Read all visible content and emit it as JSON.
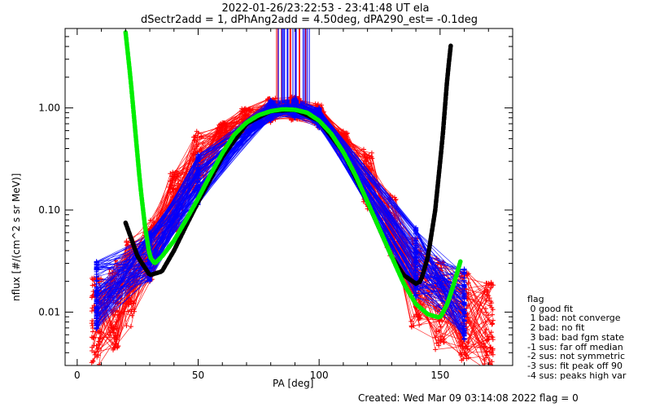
{
  "chart_data": {
    "type": "line",
    "title": "2022-01-26/23:22:53 - 23:41:48 UT ela",
    "subtitle": "dSectr2add = 1, dPhAng2add = 4.50deg, dPA290_est=  -0.1deg",
    "xlabel": "PA [deg]",
    "ylabel": "nflux [#/(cm^2 s sr MeV)]",
    "x_ticks": [
      "0",
      "50",
      "100",
      "150"
    ],
    "y_ticks": [
      "0.01",
      "0.10",
      "1.00"
    ],
    "xlim": [
      -5,
      180
    ],
    "ylim": [
      0.003,
      6.0
    ],
    "y_scale": "log",
    "grid": false,
    "pa_bins": [
      8,
      30,
      50,
      80,
      90,
      100,
      140,
      160
    ],
    "series": [
      {
        "color": "#ff0000",
        "x": [
          8,
          15,
          22,
          30,
          40,
          50,
          60,
          70,
          80,
          90,
          100,
          110,
          120,
          130,
          140,
          150,
          160,
          170
        ],
        "y": [
          0.008,
          0.012,
          0.02,
          0.04,
          0.12,
          0.3,
          0.55,
          0.75,
          0.95,
          1.0,
          0.85,
          0.45,
          0.2,
          0.07,
          0.02,
          0.012,
          0.009,
          0.007
        ]
      },
      {
        "color": "#0000ff",
        "x": [
          8,
          30,
          50,
          70,
          80,
          90,
          100,
          120,
          140,
          160
        ],
        "y": [
          0.015,
          0.035,
          0.2,
          0.7,
          0.95,
          1.0,
          0.8,
          0.25,
          0.03,
          0.012
        ]
      },
      {
        "color": "#00ee00",
        "x": [
          20,
          22,
          24,
          26,
          28,
          30,
          32,
          35,
          40,
          45,
          50,
          55,
          60,
          65,
          70,
          75,
          80,
          85,
          90,
          95,
          100,
          105,
          110,
          115,
          120,
          125,
          130,
          135,
          140,
          145,
          150,
          153,
          156,
          159
        ],
        "y": [
          5.5,
          2.0,
          0.6,
          0.18,
          0.07,
          0.035,
          0.03,
          0.035,
          0.05,
          0.08,
          0.13,
          0.22,
          0.36,
          0.55,
          0.72,
          0.85,
          0.93,
          0.97,
          0.96,
          0.9,
          0.75,
          0.56,
          0.37,
          0.22,
          0.12,
          0.065,
          0.035,
          0.019,
          0.012,
          0.0095,
          0.0088,
          0.012,
          0.02,
          0.035
        ]
      },
      {
        "color": "#000000",
        "x": [
          20,
          25,
          30,
          35,
          40,
          45,
          50,
          60,
          70,
          80,
          90,
          100,
          110,
          120,
          130,
          135,
          140,
          142,
          145,
          148,
          151,
          153,
          155
        ],
        "y": [
          0.075,
          0.035,
          0.023,
          0.025,
          0.04,
          0.07,
          0.12,
          0.33,
          0.7,
          0.93,
          0.96,
          0.75,
          0.37,
          0.12,
          0.035,
          0.023,
          0.019,
          0.02,
          0.035,
          0.1,
          0.5,
          2.0,
          5.5
        ]
      }
    ]
  },
  "legend": {
    "title": "flag",
    "items": [
      " 0 good fit",
      " 1 bad: not converge",
      " 2 bad: no fit",
      " 3 bad: bad fgm state",
      "-1 sus: far off median",
      "-2 sus: not symmetric",
      "-3 sus: fit peak off 90",
      "-4 sus: peaks high var"
    ]
  },
  "footer": "Created: Wed Mar 09 03:14:08 2022   flag = 0"
}
